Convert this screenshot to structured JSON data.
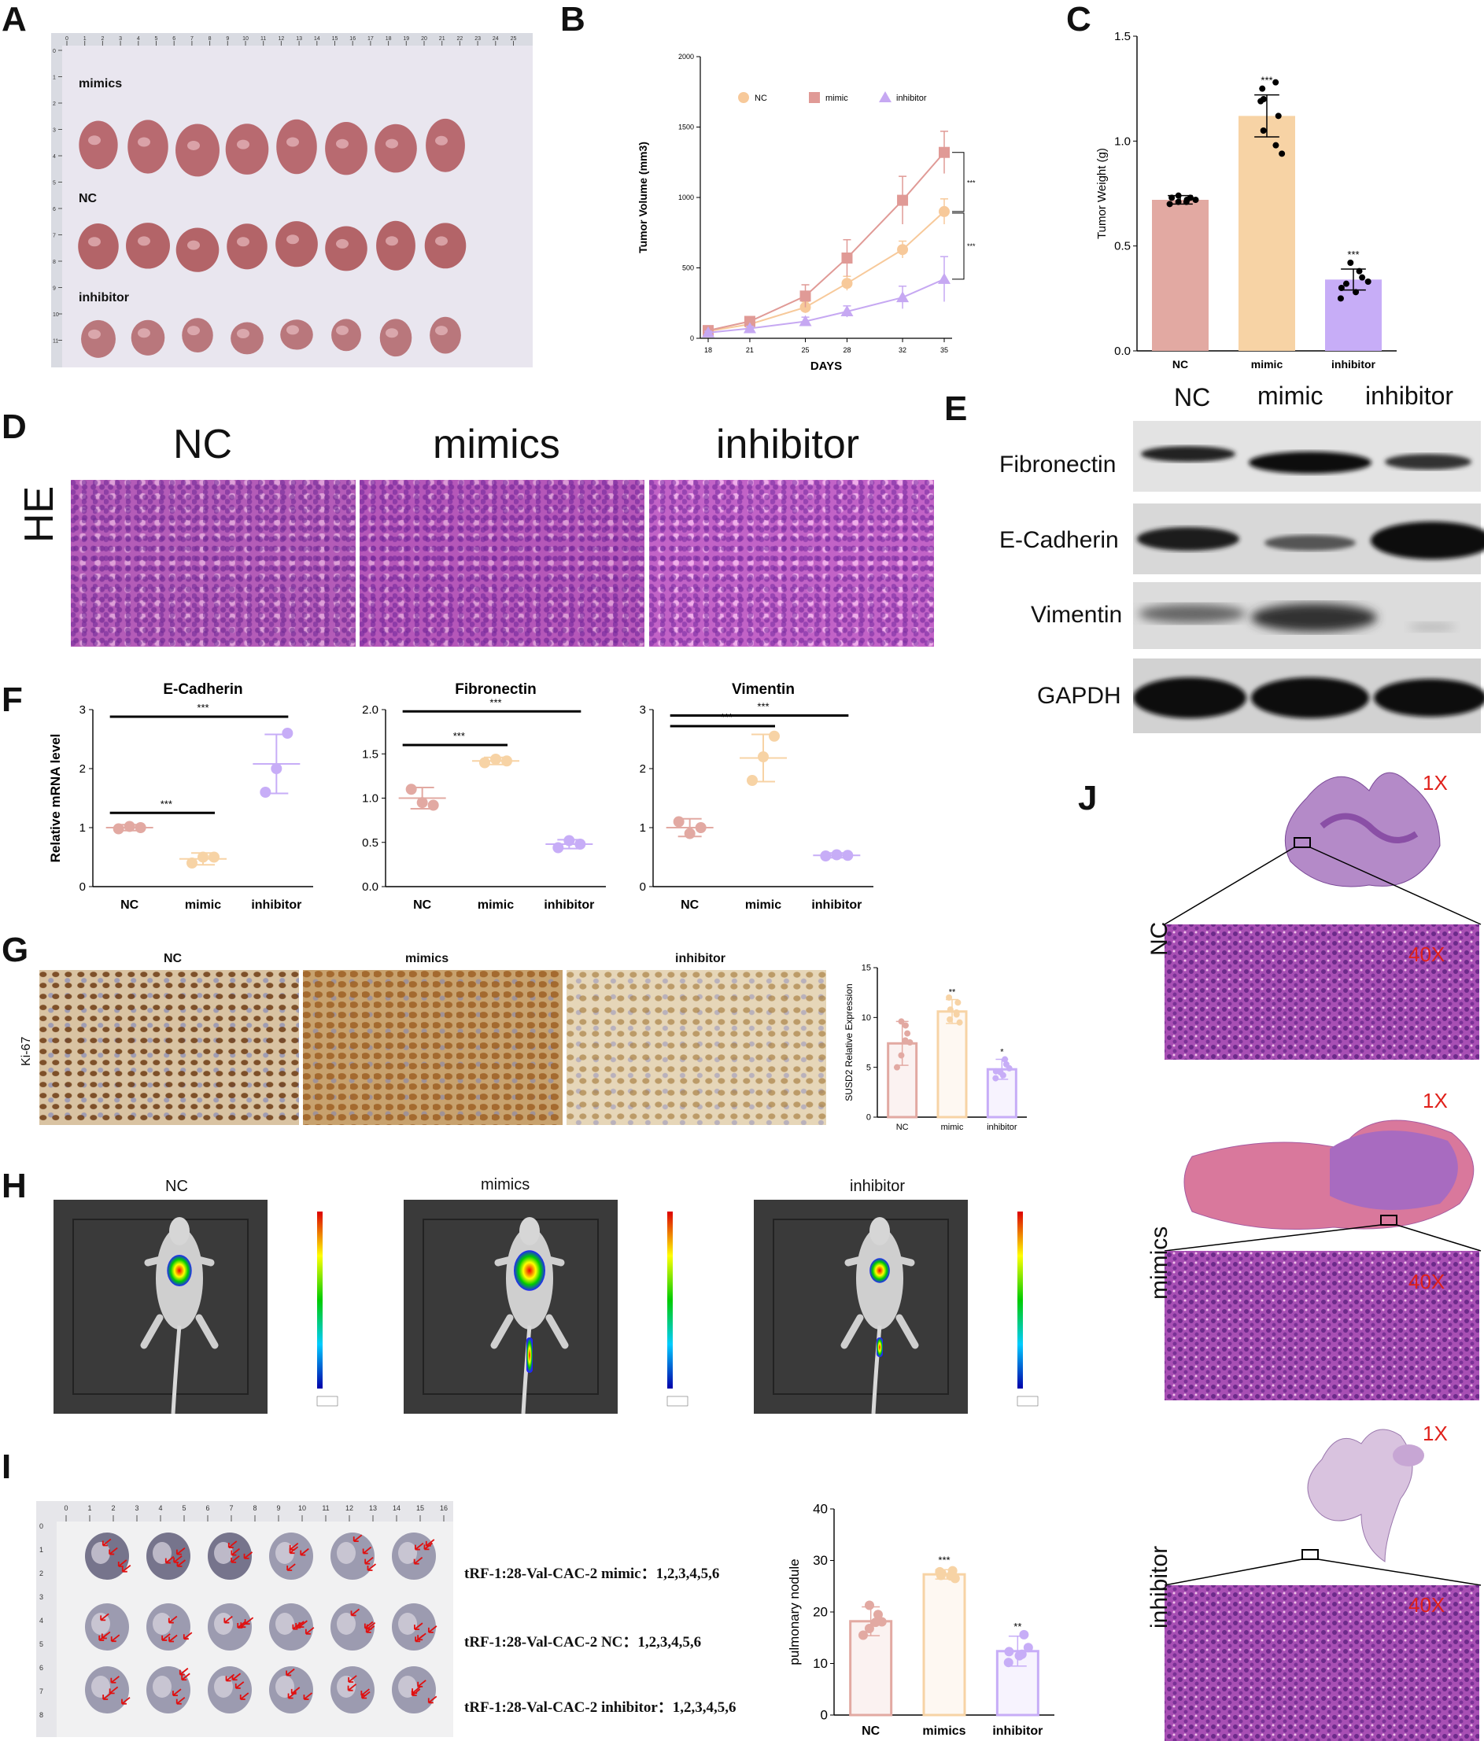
{
  "panels": {
    "A": "A",
    "B": "B",
    "C": "C",
    "D": "D",
    "E": "E",
    "F": "F",
    "G": "G",
    "H": "H",
    "I": "I",
    "J": "J"
  },
  "panelA": {
    "rows": [
      "mimics",
      "NC",
      "inhibitor"
    ],
    "ruler_top": [
      "0",
      "1",
      "2",
      "3",
      "4",
      "5",
      "6",
      "7",
      "8",
      "9",
      "10",
      "11",
      "12",
      "13",
      "14",
      "15",
      "16",
      "17",
      "18",
      "19",
      "20",
      "21",
      "22",
      "23",
      "24",
      "25"
    ],
    "ruler_left": [
      "0",
      "1",
      "2",
      "3",
      "4",
      "5",
      "6",
      "7",
      "8",
      "9",
      "10",
      "11"
    ]
  },
  "panelB": {
    "legend": [
      "NC",
      "mimic",
      "inhibitor"
    ],
    "sig": [
      "***",
      "***"
    ]
  },
  "panelC": {
    "sig": [
      "***",
      "***"
    ]
  },
  "panelD": {
    "titles": [
      "NC",
      "mimics",
      "inhibitor"
    ],
    "side": "HE"
  },
  "panelE": {
    "headers": [
      "NC",
      "mimic",
      "inhibitor"
    ],
    "rows": [
      "Fibronectin",
      "E-Cadherin",
      "Vimentin",
      "GAPDH"
    ]
  },
  "panelG": {
    "titles": [
      "NC",
      "mimics",
      "inhibitor"
    ],
    "side": "Ki-67",
    "sig": [
      "**",
      "*"
    ]
  },
  "panelH": {
    "titles": [
      "NC",
      "mimics",
      "inhibitor"
    ]
  },
  "panelI": {
    "captions": [
      "tRF-1:28-Val-CAC-2 mimic：1,2,3,4,5,6",
      "tRF-1:28-Val-CAC-2 NC：1,2,3,4,5,6",
      "tRF-1:28-Val-CAC-2 inhibitor：1,2,3,4,5,6"
    ],
    "ruler_top": [
      "0",
      "1",
      "2",
      "3",
      "4",
      "5",
      "6",
      "7",
      "8",
      "9",
      "10",
      "11",
      "12",
      "13",
      "14",
      "15",
      "16"
    ],
    "ruler_left": [
      "0",
      "1",
      "2",
      "3",
      "4",
      "5",
      "6",
      "7",
      "8"
    ],
    "sig": [
      "***",
      "**"
    ]
  },
  "panelJ": {
    "groups": [
      "NC",
      "mimics",
      "inhibitor"
    ],
    "mag_low": "1X",
    "mag_high": "40X"
  },
  "chart_data": [
    {
      "id": "B",
      "type": "line",
      "xlabel": "DAYS",
      "ylabel": "Tumor Volume (mm3)",
      "x": [
        18,
        21,
        25,
        28,
        32,
        35
      ],
      "ylim": [
        0,
        2000
      ],
      "yticks": [
        0,
        500,
        1000,
        1500,
        2000
      ],
      "series": [
        {
          "name": "NC",
          "color": "#f7c99a",
          "marker": "circle",
          "values": [
            50,
            100,
            220,
            390,
            630,
            900
          ],
          "err": [
            15,
            20,
            40,
            50,
            60,
            90
          ]
        },
        {
          "name": "mimic",
          "color": "#e09a96",
          "marker": "square",
          "values": [
            55,
            120,
            300,
            570,
            980,
            1320
          ],
          "err": [
            20,
            30,
            80,
            130,
            170,
            150
          ]
        },
        {
          "name": "inhibitor",
          "color": "#c6a8f2",
          "marker": "triangle",
          "values": [
            40,
            70,
            120,
            190,
            290,
            420
          ],
          "err": [
            10,
            15,
            30,
            40,
            80,
            160
          ]
        }
      ]
    },
    {
      "id": "C",
      "type": "bar",
      "ylabel": "Tumor Weight (g)",
      "categories": [
        "NC",
        "mimic",
        "inhibitor"
      ],
      "values": [
        0.72,
        1.12,
        0.34
      ],
      "err": [
        0.02,
        0.1,
        0.05
      ],
      "ylim": [
        0,
        1.5
      ],
      "yticks": [
        "0.0",
        "0.5",
        "1.0",
        "1.5"
      ],
      "colors": [
        "#e2a9a2",
        "#f7d3a5",
        "#c7adf7"
      ],
      "points": [
        [
          0.7,
          0.71,
          0.72,
          0.73,
          0.74,
          0.72,
          0.71,
          0.73
        ],
        [
          0.94,
          0.98,
          1.05,
          1.12,
          1.19,
          1.25,
          1.28,
          1.2
        ],
        [
          0.25,
          0.28,
          0.3,
          0.33,
          0.35,
          0.38,
          0.42,
          0.32
        ]
      ]
    },
    {
      "id": "F1",
      "type": "scatter",
      "title": "E-Cadherin",
      "ylabel": "Relative mRNA level",
      "categories": [
        "NC",
        "mimic",
        "inhibitor"
      ],
      "ylim": [
        0,
        3
      ],
      "yticks": [
        "0",
        "1",
        "2",
        "3"
      ],
      "means": [
        1.0,
        0.47,
        2.08
      ],
      "err": [
        0.05,
        0.1,
        0.5
      ],
      "points": [
        [
          0.98,
          1.02,
          1.0
        ],
        [
          0.4,
          0.5,
          0.5
        ],
        [
          1.6,
          2.0,
          2.6
        ]
      ],
      "colors": [
        "#e2a9a2",
        "#f7d3a5",
        "#c7adf7"
      ]
    },
    {
      "id": "F2",
      "type": "scatter",
      "title": "Fibronectin",
      "categories": [
        "NC",
        "mimic",
        "inhibitor"
      ],
      "ylim": [
        0,
        2.0
      ],
      "yticks": [
        "0.0",
        "0.5",
        "1.0",
        "1.5",
        "2.0"
      ],
      "means": [
        1.0,
        1.42,
        0.48
      ],
      "err": [
        0.12,
        0.04,
        0.05
      ],
      "points": [
        [
          1.1,
          0.95,
          0.92
        ],
        [
          1.4,
          1.44,
          1.42
        ],
        [
          0.44,
          0.52,
          0.48
        ]
      ],
      "colors": [
        "#e2a9a2",
        "#f7d3a5",
        "#c7adf7"
      ]
    },
    {
      "id": "F3",
      "type": "scatter",
      "title": "Vimentin",
      "categories": [
        "NC",
        "mimic",
        "inhibitor"
      ],
      "ylim": [
        0,
        3
      ],
      "yticks": [
        "0",
        "1",
        "2",
        "3"
      ],
      "means": [
        1.0,
        2.18,
        0.53
      ],
      "err": [
        0.15,
        0.4,
        0.04
      ],
      "points": [
        [
          1.1,
          0.9,
          1.0
        ],
        [
          1.8,
          2.2,
          2.55
        ],
        [
          0.52,
          0.54,
          0.53
        ]
      ],
      "colors": [
        "#e2a9a2",
        "#f7d3a5",
        "#c7adf7"
      ]
    },
    {
      "id": "G",
      "type": "bar",
      "ylabel": "SUSD2 Relative Expression",
      "categories": [
        "NC",
        "mimic",
        "inhibitor"
      ],
      "values": [
        7.4,
        10.6,
        4.8
      ],
      "err": [
        2.2,
        1.2,
        1.0
      ],
      "ylim": [
        0,
        15
      ],
      "yticks": [
        "0",
        "5",
        "10",
        "15"
      ],
      "colors": [
        "#e2a9a2",
        "#f7d3a5",
        "#c7adf7"
      ],
      "points": [
        [
          5,
          6.2,
          7.5,
          8.4,
          9.6,
          9.2,
          7.7
        ],
        [
          9.5,
          10.3,
          10.8,
          11.5,
          12.0,
          9.8,
          10.5
        ],
        [
          3.9,
          4.2,
          4.6,
          4.9,
          5.3,
          5.8,
          4.5
        ]
      ]
    },
    {
      "id": "I",
      "type": "bar",
      "ylabel": "pulmonary nodule",
      "categories": [
        "NC",
        "mimics",
        "inhibitor"
      ],
      "values": [
        18.2,
        27.3,
        12.4
      ],
      "err": [
        2.8,
        0.9,
        2.9
      ],
      "ylim": [
        0,
        40
      ],
      "yticks": [
        "0",
        "10",
        "20",
        "30",
        "40"
      ],
      "colors": [
        "#e2a9a2",
        "#f7d3a5",
        "#c7adf7"
      ],
      "points": [
        [
          15.5,
          16.8,
          18.1,
          19.5,
          21.3,
          18
        ],
        [
          26.5,
          27,
          27.5,
          28,
          27.8,
          27.1
        ],
        [
          10.2,
          11.5,
          12.3,
          13.1,
          15.6,
          11.8
        ]
      ]
    }
  ],
  "sig_F": {
    "F1": [
      "***",
      "***"
    ],
    "F2": [
      "***",
      "***"
    ],
    "F3": [
      "***",
      "***"
    ]
  }
}
